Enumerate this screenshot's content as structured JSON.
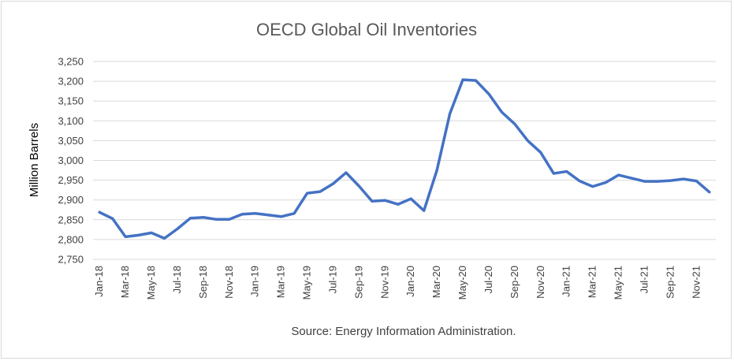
{
  "chart_data": {
    "type": "line",
    "title": "OECD Global Oil Inventories",
    "ylabel": "Million Barrels",
    "xlabel": "",
    "source": "Source: Energy Information Administration.",
    "ylim": [
      2750,
      3250
    ],
    "yticks": [
      "2,750",
      "2,800",
      "2,850",
      "2,900",
      "2,950",
      "3,000",
      "3,050",
      "3,100",
      "3,150",
      "3,200",
      "3,250"
    ],
    "grid": true,
    "legend": "none",
    "x": [
      "Jan-18",
      "Feb-18",
      "Mar-18",
      "Apr-18",
      "May-18",
      "Jun-18",
      "Jul-18",
      "Aug-18",
      "Sep-18",
      "Oct-18",
      "Nov-18",
      "Dec-18",
      "Jan-19",
      "Feb-19",
      "Mar-19",
      "Apr-19",
      "May-19",
      "Jun-19",
      "Jul-19",
      "Aug-19",
      "Sep-19",
      "Oct-19",
      "Nov-19",
      "Dec-19",
      "Jan-20",
      "Feb-20",
      "Mar-20",
      "Apr-20",
      "May-20",
      "Jun-20",
      "Jul-20",
      "Aug-20",
      "Sep-20",
      "Oct-20",
      "Nov-20",
      "Dec-20",
      "Jan-21",
      "Feb-21",
      "Mar-21",
      "Apr-21",
      "May-21",
      "Jun-21",
      "Jul-21",
      "Aug-21",
      "Sep-21",
      "Oct-21",
      "Nov-21",
      "Dec-21"
    ],
    "xtick_labels": [
      "Jan-18",
      "",
      "Mar-18",
      "",
      "May-18",
      "",
      "Jul-18",
      "",
      "Sep-18",
      "",
      "Nov-18",
      "",
      "Jan-19",
      "",
      "Mar-19",
      "",
      "May-19",
      "",
      "Jul-19",
      "",
      "Sep-19",
      "",
      "Nov-19",
      "",
      "Jan-20",
      "",
      "Mar-20",
      "",
      "May-20",
      "",
      "Jul-20",
      "",
      "Sep-20",
      "",
      "Nov-20",
      "",
      "Jan-21",
      "",
      "Mar-21",
      "",
      "May-21",
      "",
      "Jul-21",
      "",
      "Sep-21",
      "",
      "Nov-21",
      ""
    ],
    "series": [
      {
        "color": "#4472c4",
        "values": [
          2869,
          2853,
          2807,
          2811,
          2817,
          2803,
          2827,
          2854,
          2856,
          2851,
          2851,
          2864,
          2866,
          2862,
          2858,
          2866,
          2917,
          2921,
          2941,
          2969,
          2935,
          2897,
          2899,
          2889,
          2903,
          2873,
          2975,
          3118,
          3204,
          3202,
          3168,
          3122,
          3092,
          3050,
          3020,
          2967,
          2972,
          2948,
          2934,
          2944,
          2963,
          2955,
          2947,
          2947,
          2949,
          2953,
          2948,
          2920
        ]
      }
    ]
  }
}
